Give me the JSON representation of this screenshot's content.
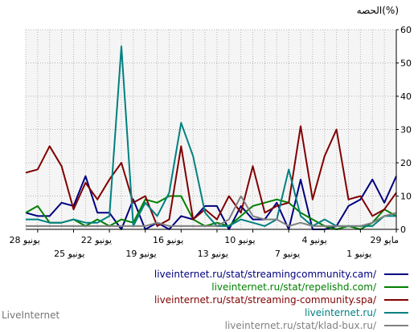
{
  "chart_data": {
    "type": "line",
    "ylabel": "الحصه(%)",
    "ylim": [
      0,
      60
    ],
    "yticks": [
      0,
      10,
      20,
      30,
      40,
      50,
      60
    ],
    "grid": true,
    "x": [
      "29 مايو",
      "30 مايو",
      "31 مايو",
      "1 يونيو",
      "2 يونيو",
      "3 يونيو",
      "4 يونيو",
      "5 يونيو",
      "6 يونيو",
      "7 يونيو",
      "8 يونيو",
      "9 يونيو",
      "10 يونيو",
      "11 يونيو",
      "12 يونيو",
      "13 يونيو",
      "14 يونيو",
      "15 يونيو",
      "16 يونيو",
      "17 يونيو",
      "18 يونيو",
      "19 يونيو",
      "20 يونيو",
      "21 يونيو",
      "22 يونيو",
      "23 يونيو",
      "24 يونيو",
      "25 يونيو",
      "26 يونيو",
      "27 يونيو",
      "28 يونيو",
      "29 يونيو"
    ],
    "xticks_lower": [
      {
        "label": "29 مايو",
        "i": 0
      },
      {
        "label": "4 يونيو",
        "i": 6
      },
      {
        "label": "10 يونيو",
        "i": 12
      },
      {
        "label": "16 يونيو",
        "i": 18
      },
      {
        "label": "22 يونيو",
        "i": 24
      },
      {
        "label": "28 يونيو",
        "i": 30
      }
    ],
    "xticks_upper": [
      {
        "label": "1 يونيو",
        "i": 3
      },
      {
        "label": "7 يونيو",
        "i": 9
      },
      {
        "label": "13 يونيو",
        "i": 15
      },
      {
        "label": "19 يونيو",
        "i": 21
      },
      {
        "label": "25 يونيو",
        "i": 27
      }
    ],
    "series": [
      {
        "name": "liveinternet.ru/stat/streamingcommunity.cam/",
        "color": "#000080",
        "values": [
          16,
          8,
          15,
          9,
          7,
          1,
          0,
          0,
          15,
          0,
          8,
          3,
          3,
          7,
          0,
          7,
          7,
          3,
          4,
          0,
          2,
          0,
          9,
          0,
          5,
          5,
          16,
          7,
          8,
          4,
          4,
          5
        ]
      },
      {
        "name": "liveinternet.ru/stat/repelishd.com/",
        "color": "#008000",
        "values": [
          4,
          6,
          2,
          0,
          1,
          0,
          1,
          3,
          5,
          8,
          9,
          8,
          7,
          4,
          1,
          2,
          1,
          3,
          10,
          10,
          8,
          9,
          2,
          3,
          1,
          3,
          1,
          3,
          2,
          2,
          7,
          5
        ]
      },
      {
        "name": "liveinternet.ru/stat/streaming-community.spa/",
        "color": "#800000",
        "values": [
          11,
          6,
          4,
          10,
          9,
          30,
          22,
          9,
          31,
          8,
          7,
          5,
          19,
          5,
          10,
          3,
          6,
          3,
          25,
          3,
          1,
          10,
          8,
          20,
          15,
          9,
          14,
          6,
          19,
          25,
          18,
          17
        ]
      },
      {
        "name": "liveinternet.ru/",
        "color": "#008080",
        "values": [
          4,
          4,
          1,
          1,
          1,
          1,
          3,
          1,
          4,
          18,
          3,
          1,
          2,
          3,
          1,
          1,
          5,
          22,
          32,
          11,
          4,
          8,
          1,
          55,
          4,
          2,
          2,
          3,
          2,
          2,
          3,
          3
        ]
      },
      {
        "name": "liveinternet.ru/stat/klad-bux.ru/",
        "color": "#808080",
        "values": [
          5,
          4,
          2,
          1,
          1,
          1,
          1,
          1,
          2,
          1,
          3,
          3,
          4,
          10,
          3,
          1,
          1,
          1,
          1,
          1,
          2,
          1,
          1,
          1,
          1,
          1,
          1,
          1,
          1,
          1,
          1,
          1
        ]
      }
    ]
  },
  "footer": {
    "brand": "LiveInternet"
  }
}
